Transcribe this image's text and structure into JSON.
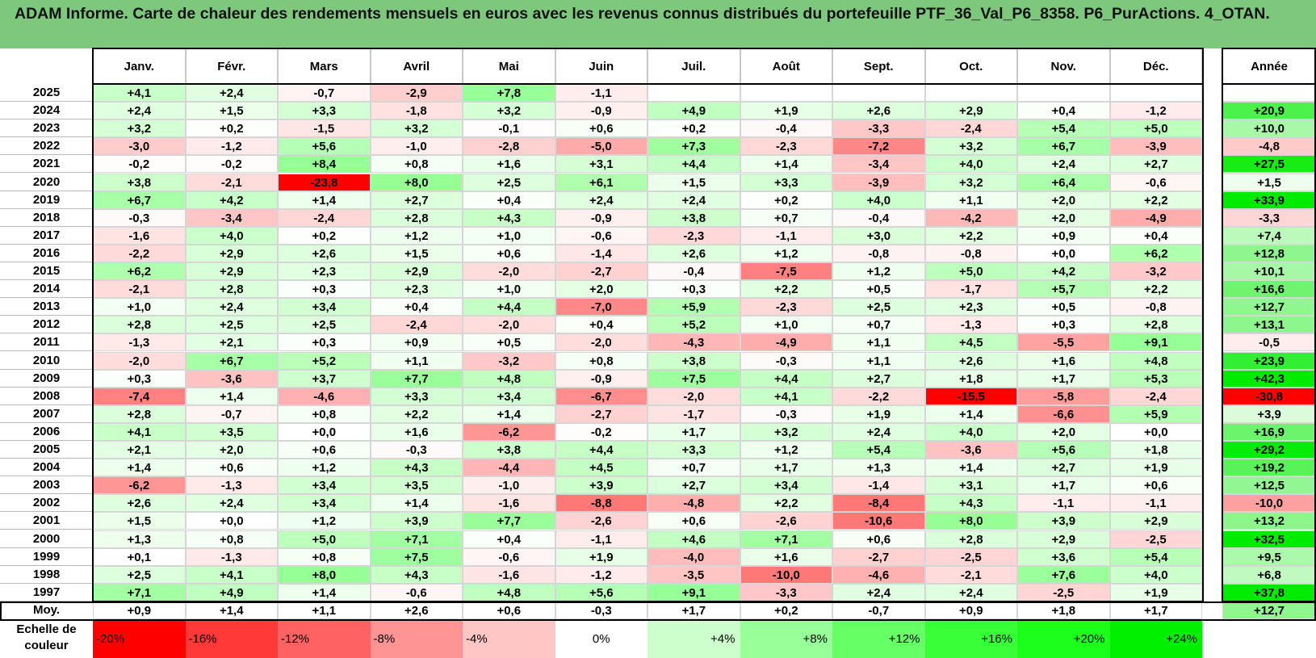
{
  "title": "ADAM Informe. Carte de chaleur des rendements mensuels en euros avec les revenus connus distribués du portefeuille PTF_36_Val_P6_8358. P6_PurActions. 4_OTAN.",
  "chart_data": {
    "type": "heatmap",
    "columns": [
      "Janv.",
      "Févr.",
      "Mars",
      "Avril",
      "Mai",
      "Juin",
      "Juil.",
      "Août",
      "Sept.",
      "Oct.",
      "Nov.",
      "Déc."
    ],
    "annual_label": "Année",
    "rows": [
      {
        "year": "2025",
        "months": [
          "+4,1",
          "+2,4",
          "-0,7",
          "-2,9",
          "+7,8",
          "-1,1",
          "",
          "",
          "",
          "",
          "",
          ""
        ],
        "annual": ""
      },
      {
        "year": "2024",
        "months": [
          "+2,4",
          "+1,5",
          "+3,3",
          "-1,8",
          "+3,2",
          "-0,9",
          "+4,9",
          "+1,9",
          "+2,6",
          "+2,9",
          "+0,4",
          "-1,2"
        ],
        "annual": "+20,9"
      },
      {
        "year": "2023",
        "months": [
          "+3,2",
          "+0,2",
          "-1,5",
          "+3,2",
          "-0,1",
          "+0,6",
          "+0,2",
          "-0,4",
          "-3,3",
          "-2,4",
          "+5,4",
          "+5,0"
        ],
        "annual": "+10,0"
      },
      {
        "year": "2022",
        "months": [
          "-3,0",
          "-1,2",
          "+5,6",
          "-1,0",
          "-2,8",
          "-5,0",
          "+7,3",
          "-2,3",
          "-7,2",
          "+3,2",
          "+6,7",
          "-3,9"
        ],
        "annual": "-4,8"
      },
      {
        "year": "2021",
        "months": [
          "-0,2",
          "-0,2",
          "+8,4",
          "+0,8",
          "+1,6",
          "+3,1",
          "+4,4",
          "+1,4",
          "-3,4",
          "+4,0",
          "+2,4",
          "+2,7"
        ],
        "annual": "+27,5"
      },
      {
        "year": "2020",
        "months": [
          "+3,8",
          "-2,1",
          "-23,8",
          "+8,0",
          "+2,5",
          "+6,1",
          "+1,5",
          "+3,3",
          "-3,9",
          "+3,2",
          "+6,4",
          "-0,6"
        ],
        "annual": "+1,5"
      },
      {
        "year": "2019",
        "months": [
          "+6,7",
          "+4,2",
          "+1,4",
          "+2,7",
          "+0,4",
          "+2,4",
          "+2,4",
          "+0,2",
          "+4,0",
          "+1,1",
          "+2,0",
          "+2,2"
        ],
        "annual": "+33,9"
      },
      {
        "year": "2018",
        "months": [
          "-0,3",
          "-3,4",
          "-2,4",
          "+2,8",
          "+4,3",
          "-0,9",
          "+3,8",
          "+0,7",
          "-0,4",
          "-4,2",
          "+2,0",
          "-4,9"
        ],
        "annual": "-3,3"
      },
      {
        "year": "2017",
        "months": [
          "-1,6",
          "+4,0",
          "+0,2",
          "+1,2",
          "+1,0",
          "-0,6",
          "-2,3",
          "-1,1",
          "+3,0",
          "+2,2",
          "+0,9",
          "+0,4"
        ],
        "annual": "+7,4"
      },
      {
        "year": "2016",
        "months": [
          "-2,2",
          "+2,9",
          "+2,6",
          "+1,5",
          "+0,6",
          "-1,4",
          "+2,6",
          "+1,2",
          "-0,8",
          "-0,8",
          "+0,0",
          "+6,2"
        ],
        "annual": "+12,8"
      },
      {
        "year": "2015",
        "months": [
          "+6,2",
          "+2,9",
          "+2,3",
          "+2,9",
          "-2,0",
          "-2,7",
          "-0,4",
          "-7,5",
          "+1,2",
          "+5,0",
          "+4,2",
          "-3,2"
        ],
        "annual": "+10,1"
      },
      {
        "year": "2014",
        "months": [
          "-2,1",
          "+2,8",
          "+0,3",
          "+2,3",
          "+1,0",
          "+2,0",
          "+0,3",
          "+2,2",
          "+0,5",
          "-1,7",
          "+5,7",
          "+2,2"
        ],
        "annual": "+16,6"
      },
      {
        "year": "2013",
        "months": [
          "+1,0",
          "+2,4",
          "+3,4",
          "+0,4",
          "+4,4",
          "-7,0",
          "+5,9",
          "-2,3",
          "+2,5",
          "+2,3",
          "+0,5",
          "-0,8"
        ],
        "annual": "+12,7"
      },
      {
        "year": "2012",
        "months": [
          "+2,8",
          "+2,5",
          "+2,5",
          "-2,4",
          "-2,0",
          "+0,4",
          "+5,2",
          "+1,0",
          "+0,7",
          "-1,3",
          "+0,3",
          "+2,8"
        ],
        "annual": "+13,1"
      },
      {
        "year": "2011",
        "months": [
          "-1,3",
          "+2,1",
          "+0,3",
          "+0,9",
          "+0,5",
          "-2,0",
          "-4,3",
          "-4,9",
          "+1,1",
          "+4,5",
          "-5,5",
          "+9,1"
        ],
        "annual": "-0,5"
      },
      {
        "year": "2010",
        "months": [
          "-2,0",
          "+6,7",
          "+5,2",
          "+1,1",
          "-3,2",
          "+0,8",
          "+3,8",
          "-0,3",
          "+1,1",
          "+2,6",
          "+1,6",
          "+4,8"
        ],
        "annual": "+23,9"
      },
      {
        "year": "2009",
        "months": [
          "+0,3",
          "-3,6",
          "+3,7",
          "+7,7",
          "+4,8",
          "-0,9",
          "+7,5",
          "+4,4",
          "+2,7",
          "+1,8",
          "+1,7",
          "+5,3"
        ],
        "annual": "+42,3"
      },
      {
        "year": "2008",
        "months": [
          "-7,4",
          "+1,4",
          "-4,6",
          "+3,3",
          "+3,4",
          "-6,7",
          "-2,0",
          "+4,1",
          "-2,2",
          "-15,5",
          "-5,8",
          "-2,4"
        ],
        "annual": "-30,8"
      },
      {
        "year": "2007",
        "months": [
          "+2,8",
          "-0,7",
          "+0,8",
          "+2,2",
          "+1,4",
          "-2,7",
          "-1,7",
          "-0,3",
          "+1,9",
          "+1,4",
          "-6,6",
          "+5,9"
        ],
        "annual": "+3,9"
      },
      {
        "year": "2006",
        "months": [
          "+4,1",
          "+3,5",
          "+0,0",
          "+1,6",
          "-6,2",
          "-0,2",
          "+1,7",
          "+3,2",
          "+2,4",
          "+4,0",
          "+2,0",
          "+0,0"
        ],
        "annual": "+16,9"
      },
      {
        "year": "2005",
        "months": [
          "+2,1",
          "+2,0",
          "+0,6",
          "-0,3",
          "+3,8",
          "+4,4",
          "+3,3",
          "+1,2",
          "+5,4",
          "-3,6",
          "+5,6",
          "+1,8"
        ],
        "annual": "+29,2"
      },
      {
        "year": "2004",
        "months": [
          "+1,4",
          "+0,6",
          "+1,2",
          "+4,3",
          "-4,4",
          "+4,5",
          "+0,7",
          "+1,7",
          "+1,3",
          "+1,4",
          "+2,7",
          "+1,9"
        ],
        "annual": "+19,2"
      },
      {
        "year": "2003",
        "months": [
          "-6,2",
          "-1,3",
          "+3,4",
          "+3,5",
          "-1,0",
          "+3,9",
          "+2,7",
          "+3,4",
          "-1,4",
          "+3,1",
          "+1,7",
          "+0,6"
        ],
        "annual": "+12,5"
      },
      {
        "year": "2002",
        "months": [
          "+2,6",
          "+2,4",
          "+3,4",
          "+1,4",
          "-1,6",
          "-8,8",
          "-4,8",
          "+2,2",
          "-8,4",
          "+4,3",
          "-1,1",
          "-1,1"
        ],
        "annual": "-10,0"
      },
      {
        "year": "2001",
        "months": [
          "+1,5",
          "+0,0",
          "+1,2",
          "+3,9",
          "+7,7",
          "-2,6",
          "+0,6",
          "-2,6",
          "-10,6",
          "+8,0",
          "+3,9",
          "+2,9"
        ],
        "annual": "+13,2"
      },
      {
        "year": "2000",
        "months": [
          "+1,3",
          "+0,8",
          "+5,0",
          "+7,1",
          "+0,4",
          "-1,1",
          "+4,6",
          "+7,1",
          "+0,6",
          "+2,8",
          "+2,9",
          "-2,5"
        ],
        "annual": "+32,5"
      },
      {
        "year": "1999",
        "months": [
          "+0,1",
          "-1,3",
          "+0,8",
          "+7,5",
          "-0,6",
          "+1,9",
          "-4,0",
          "+1,6",
          "-2,7",
          "-2,5",
          "+3,6",
          "+5,4"
        ],
        "annual": "+9,5"
      },
      {
        "year": "1998",
        "months": [
          "+2,5",
          "+4,1",
          "+8,0",
          "+4,3",
          "-1,6",
          "-1,2",
          "-3,5",
          "-10,0",
          "-4,6",
          "-2,1",
          "+7,6",
          "+4,0"
        ],
        "annual": "+6,8"
      },
      {
        "year": "1997",
        "months": [
          "+7,1",
          "+4,9",
          "+1,4",
          "-0,6",
          "+4,8",
          "+5,6",
          "+9,1",
          "-3,3",
          "+2,4",
          "+2,4",
          "-2,5",
          "+1,9"
        ],
        "annual": "+37,8"
      }
    ],
    "average_row": {
      "label": "Moy.",
      "months": [
        "+0,9",
        "+1,4",
        "+1,1",
        "+2,6",
        "+0,6",
        "-0,3",
        "+1,7",
        "+0,2",
        "-0,7",
        "+0,9",
        "+1,8",
        "+1,7"
      ],
      "annual": "+12,7"
    },
    "color_scale": {
      "label": "Echelle de couleur",
      "steps": [
        {
          "label": "-20%",
          "color": "#ff0000"
        },
        {
          "label": "-16%",
          "color": "#ff3838"
        },
        {
          "label": "-12%",
          "color": "#ff6262"
        },
        {
          "label": "-8%",
          "color": "#ff9494"
        },
        {
          "label": "-4%",
          "color": "#ffc6c6"
        },
        {
          "label": "0%",
          "color": "#ffffff"
        },
        {
          "label": "+4%",
          "color": "#ccffcc"
        },
        {
          "label": "+8%",
          "color": "#99ff99"
        },
        {
          "label": "+12%",
          "color": "#66ff66"
        },
        {
          "label": "+16%",
          "color": "#38ff38"
        },
        {
          "label": "+20%",
          "color": "#1cff1c"
        },
        {
          "label": "+24%",
          "color": "#00f000"
        }
      ]
    }
  }
}
